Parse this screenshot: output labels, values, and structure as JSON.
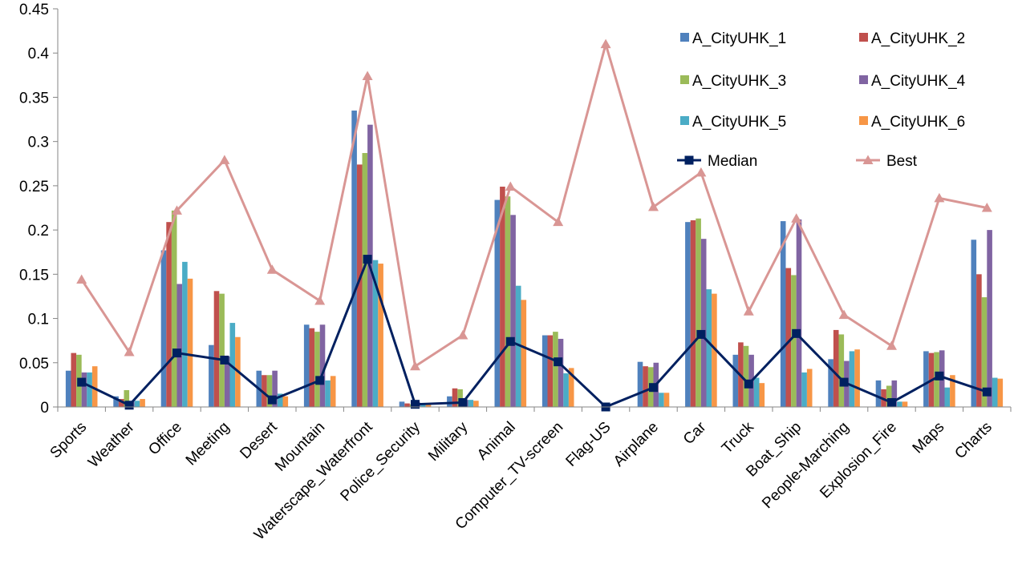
{
  "chart_data": {
    "type": "bar",
    "title": "",
    "xlabel": "",
    "ylabel": "",
    "ylim": [
      0,
      0.45
    ],
    "yticks": [
      0,
      0.05,
      0.1,
      0.15,
      0.2,
      0.25,
      0.3,
      0.35,
      0.4,
      0.45
    ],
    "ytick_labels": [
      "0",
      "0.05",
      "0.1",
      "0.15",
      "0.2",
      "0.25",
      "0.3",
      "0.35",
      "0.4",
      "0.45"
    ],
    "grid": false,
    "legend_position": "top-right",
    "categories": [
      "Sports",
      "Weather",
      "Office",
      "Meeting",
      "Desert",
      "Mountain",
      "Waterscape_Waterfront",
      "Police_Security",
      "Military",
      "Animal",
      "Computer_TV-screen",
      "Flag-US",
      "Airplane",
      "Car",
      "Truck",
      "Boat_Ship",
      "People-Marching",
      "Explosion_Fire",
      "Maps",
      "Charts"
    ],
    "series": [
      {
        "name": "A_CityUHK_1",
        "type": "bar",
        "color": "#4F81BD",
        "values": [
          0.041,
          0.012,
          0.177,
          0.07,
          0.041,
          0.093,
          0.335,
          0.006,
          0.012,
          0.234,
          0.081,
          0.0,
          0.051,
          0.209,
          0.059,
          0.21,
          0.054,
          0.03,
          0.063,
          0.189
        ]
      },
      {
        "name": "A_CityUHK_2",
        "type": "bar",
        "color": "#C0504D",
        "values": [
          0.061,
          0.009,
          0.209,
          0.131,
          0.036,
          0.089,
          0.274,
          0.004,
          0.021,
          0.249,
          0.081,
          0.0,
          0.046,
          0.211,
          0.073,
          0.157,
          0.087,
          0.02,
          0.061,
          0.15
        ]
      },
      {
        "name": "A_CityUHK_3",
        "type": "bar",
        "color": "#9BBB59",
        "values": [
          0.059,
          0.019,
          0.222,
          0.128,
          0.036,
          0.085,
          0.287,
          0.003,
          0.02,
          0.238,
          0.085,
          0.0,
          0.045,
          0.213,
          0.069,
          0.149,
          0.082,
          0.024,
          0.062,
          0.124
        ]
      },
      {
        "name": "A_CityUHK_4",
        "type": "bar",
        "color": "#8064A2",
        "values": [
          0.039,
          0.006,
          0.139,
          0.057,
          0.041,
          0.093,
          0.319,
          0.005,
          0.008,
          0.217,
          0.077,
          0.0,
          0.05,
          0.19,
          0.059,
          0.212,
          0.052,
          0.03,
          0.064,
          0.2
        ]
      },
      {
        "name": "A_CityUHK_5",
        "type": "bar",
        "color": "#4BACC6",
        "values": [
          0.039,
          0.007,
          0.164,
          0.095,
          0.015,
          0.03,
          0.166,
          0.003,
          0.008,
          0.137,
          0.038,
          0.0,
          0.016,
          0.133,
          0.033,
          0.039,
          0.063,
          0.006,
          0.022,
          0.033
        ]
      },
      {
        "name": "A_CityUHK_6",
        "type": "bar",
        "color": "#F79646",
        "values": [
          0.046,
          0.009,
          0.145,
          0.079,
          0.012,
          0.035,
          0.162,
          0.003,
          0.007,
          0.121,
          0.044,
          0.0,
          0.016,
          0.128,
          0.027,
          0.043,
          0.065,
          0.006,
          0.036,
          0.032
        ]
      },
      {
        "name": "Median",
        "type": "line",
        "color": "#002060",
        "marker": "square",
        "values": [
          0.028,
          0.002,
          0.061,
          0.053,
          0.008,
          0.03,
          0.167,
          0.003,
          0.005,
          0.074,
          0.051,
          0.0,
          0.022,
          0.082,
          0.026,
          0.083,
          0.028,
          0.005,
          0.035,
          0.017
        ]
      },
      {
        "name": "Best",
        "type": "line",
        "color": "#D99694",
        "marker": "triangle",
        "values": [
          0.144,
          0.062,
          0.222,
          0.279,
          0.155,
          0.12,
          0.374,
          0.046,
          0.081,
          0.249,
          0.209,
          0.41,
          0.226,
          0.265,
          0.108,
          0.213,
          0.104,
          0.069,
          0.236,
          0.225
        ]
      }
    ]
  }
}
